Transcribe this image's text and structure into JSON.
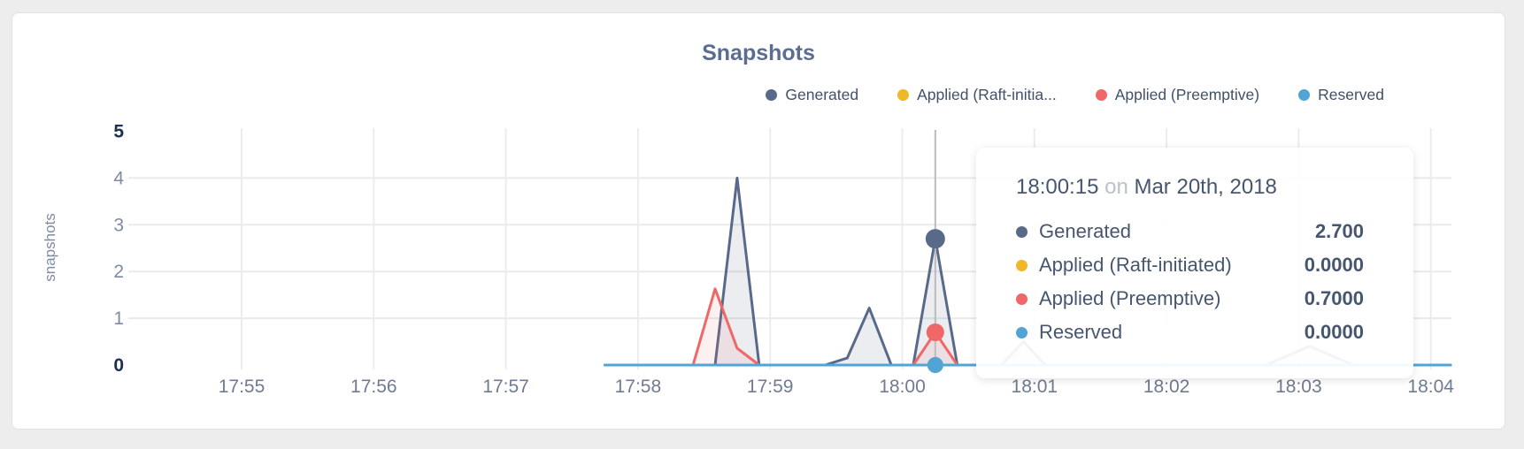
{
  "card": {
    "title": "Snapshots"
  },
  "legend": {
    "items": [
      {
        "label": "Generated",
        "color": "#59698a"
      },
      {
        "label": "Applied (Raft-initia...",
        "color": "#efb72a"
      },
      {
        "label": "Applied (Preemptive)",
        "color": "#f06768"
      },
      {
        "label": "Reserved",
        "color": "#51a4d6"
      }
    ]
  },
  "tooltip": {
    "time": "18:00:15",
    "on_word": "on",
    "date": "Mar 20th, 2018",
    "rows": [
      {
        "label": "Generated",
        "value": "2.700",
        "color": "#59698a"
      },
      {
        "label": "Applied (Raft-initiated)",
        "value": "0.0000",
        "color": "#efb72a"
      },
      {
        "label": "Applied (Preemptive)",
        "value": "0.7000",
        "color": "#f06768"
      },
      {
        "label": "Reserved",
        "value": "0.0000",
        "color": "#51a4d6"
      }
    ]
  },
  "chart_data": {
    "type": "area",
    "title": "Snapshots",
    "xlabel": "",
    "ylabel": "snapshots",
    "ylim": [
      0,
      5
    ],
    "y_ticks": [
      0,
      1,
      2,
      3,
      4,
      5
    ],
    "y_ticks_bold": [
      0,
      5
    ],
    "x_ticks": [
      "17:55",
      "17:56",
      "17:57",
      "17:58",
      "17:59",
      "18:00",
      "18:01",
      "18:02",
      "18:03",
      "18:04"
    ],
    "x_unit": "seconds after 17:55:00",
    "x_range": [
      165,
      549
    ],
    "grid": true,
    "legend_position": "top-right",
    "hover": {
      "t": 315,
      "time": "18:00:15",
      "date": "Mar 20th, 2018"
    },
    "series": [
      {
        "name": "Generated",
        "color": "#59698a",
        "fill": "rgba(89,105,138,0.12)",
        "hover_value": "2.700",
        "dot_r": 11,
        "points": [
          [
            165,
            0
          ],
          [
            215,
            0
          ],
          [
            225,
            4
          ],
          [
            235,
            0
          ],
          [
            265,
            0
          ],
          [
            275,
            0.15
          ],
          [
            285,
            1.22
          ],
          [
            295,
            0
          ],
          [
            305,
            0
          ],
          [
            315,
            2.7
          ],
          [
            325,
            0
          ],
          [
            345,
            0
          ],
          [
            355,
            0.5
          ],
          [
            365,
            0
          ],
          [
            465,
            0
          ],
          [
            485,
            0.4
          ],
          [
            505,
            0
          ],
          [
            549,
            0
          ]
        ]
      },
      {
        "name": "Applied (Raft-initiated)",
        "color": "#efb72a",
        "fill": null,
        "hover_value": "0.0000",
        "dot_r": 9,
        "points": [
          [
            165,
            0
          ],
          [
            549,
            0
          ]
        ]
      },
      {
        "name": "Applied (Preemptive)",
        "color": "#f06768",
        "fill": "rgba(240,103,104,0.10)",
        "hover_value": "0.7000",
        "dot_r": 10,
        "points": [
          [
            165,
            0
          ],
          [
            205,
            0
          ],
          [
            215,
            1.63
          ],
          [
            225,
            0.36
          ],
          [
            235,
            0
          ],
          [
            305,
            0
          ],
          [
            315,
            0.7
          ],
          [
            325,
            0
          ],
          [
            549,
            0
          ]
        ]
      },
      {
        "name": "Reserved",
        "color": "#51a4d6",
        "fill": null,
        "hover_value": "0.0000",
        "dot_r": 9,
        "points": [
          [
            165,
            0
          ],
          [
            549,
            0
          ]
        ]
      }
    ]
  }
}
